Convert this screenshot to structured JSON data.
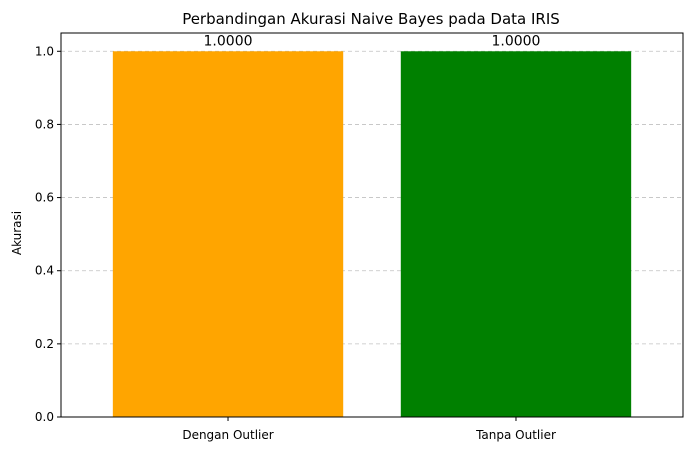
{
  "chart_data": {
    "type": "bar",
    "title": "Perbandingan Akurasi Naive Bayes pada Data IRIS",
    "xlabel": "",
    "ylabel": "Akurasi",
    "categories": [
      "Dengan Outlier",
      "Tanpa Outlier"
    ],
    "values": [
      1.0,
      1.0
    ],
    "value_labels": [
      "1.0000",
      "1.0000"
    ],
    "colors": [
      "#FFA500",
      "#008000"
    ],
    "ylim": [
      0,
      1.05
    ],
    "yticks": [
      0.0,
      0.2,
      0.4,
      0.6,
      0.8,
      1.0
    ],
    "ytick_labels": [
      "0.0",
      "0.2",
      "0.4",
      "0.6",
      "0.8",
      "1.0"
    ],
    "grid": {
      "axis": "y",
      "style": "dashed",
      "visible": true
    }
  }
}
